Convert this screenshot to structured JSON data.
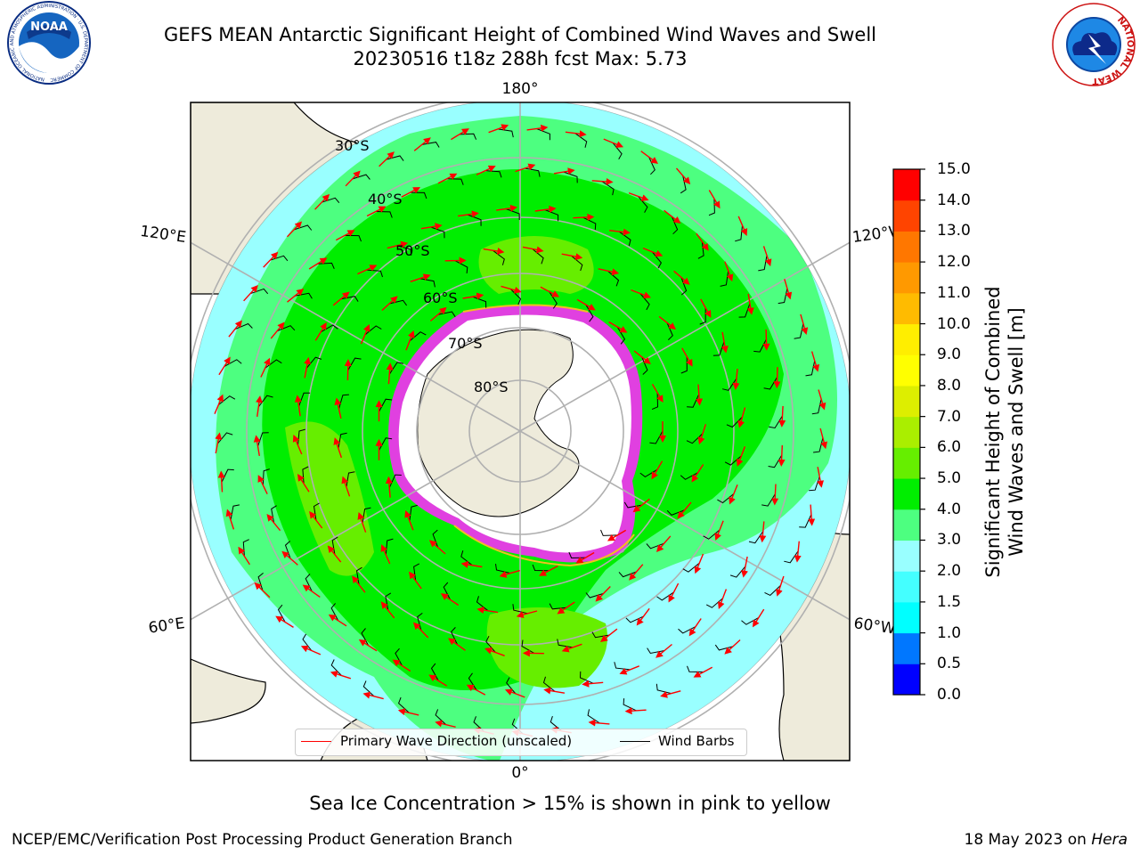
{
  "header": {
    "title_line1": "GEFS MEAN Antarctic Significant Height of Combined Wind Waves and Swell",
    "title_line2": "20230516 t18z 288h fcst   Max: 5.73"
  },
  "logos": {
    "left": {
      "name": "NOAA",
      "text": "NOAA",
      "ring_text": "NATIONAL OCEANIC AND ATMOSPHERIC ADMINISTRATION · U.S. DEPARTMENT OF COMMERCE"
    },
    "right": {
      "name": "National Weather Service",
      "ring_text": "NATIONAL WEATHER SERVICE"
    }
  },
  "map": {
    "projection": "south-polar-stereographic",
    "longitude_labels": {
      "top": "180°",
      "bottom": "0°",
      "upper_left": "120°E",
      "upper_right": "120°W",
      "lower_left": "60°E",
      "lower_right": "60°W"
    },
    "latitude_labels": [
      "30°S",
      "40°S",
      "50°S",
      "60°S",
      "70°S",
      "80°S"
    ],
    "colors": {
      "land": "#eeebdb",
      "ice_land": "#ffffff",
      "sea_ice": "#e040e0",
      "sea_ice_edge": "#f0c020",
      "grid": "#b0b0b0",
      "wave_arrow": "#ff0000",
      "wind_barb": "#000000"
    }
  },
  "colorbar": {
    "label": "Significant Height of Combined\nWind Waves and Swell [m]",
    "ticks": [
      "15.0",
      "14.0",
      "13.0",
      "12.0",
      "11.0",
      "10.0",
      "9.0",
      "8.0",
      "7.0",
      "6.0",
      "5.0",
      "4.0",
      "3.0",
      "2.0",
      "1.5",
      "1.0",
      "0.5",
      "0.0"
    ],
    "bins": [
      {
        "from": 0.0,
        "to": 0.5,
        "color": "#0000ff"
      },
      {
        "from": 0.5,
        "to": 1.0,
        "color": "#0077ff"
      },
      {
        "from": 1.0,
        "to": 1.5,
        "color": "#00ffff"
      },
      {
        "from": 1.5,
        "to": 2.0,
        "color": "#44ffff"
      },
      {
        "from": 2.0,
        "to": 3.0,
        "color": "#99ffff"
      },
      {
        "from": 3.0,
        "to": 4.0,
        "color": "#4dff80"
      },
      {
        "from": 4.0,
        "to": 5.0,
        "color": "#00ee00"
      },
      {
        "from": 5.0,
        "to": 6.0,
        "color": "#66ee00"
      },
      {
        "from": 6.0,
        "to": 7.0,
        "color": "#aaee00"
      },
      {
        "from": 7.0,
        "to": 8.0,
        "color": "#ddee00"
      },
      {
        "from": 8.0,
        "to": 9.0,
        "color": "#ffff00"
      },
      {
        "from": 9.0,
        "to": 10.0,
        "color": "#ffee00"
      },
      {
        "from": 10.0,
        "to": 11.0,
        "color": "#ffbb00"
      },
      {
        "from": 11.0,
        "to": 12.0,
        "color": "#ff9900"
      },
      {
        "from": 12.0,
        "to": 13.0,
        "color": "#ff7700"
      },
      {
        "from": 13.0,
        "to": 14.0,
        "color": "#ff4400"
      },
      {
        "from": 14.0,
        "to": 15.0,
        "color": "#ff0000"
      }
    ]
  },
  "legend": {
    "wave_label": "Primary Wave Direction (unscaled)",
    "barb_label": "Wind Barbs",
    "wave_color": "#ff0000",
    "barb_color": "#000000"
  },
  "notes": {
    "sea_ice": "Sea Ice Concentration > 15% is shown in pink to yellow"
  },
  "footer": {
    "left": "NCEP/EMC/Verification Post Processing Product Generation Branch",
    "right_prefix": "18 May 2023 on ",
    "right_host": "Hera"
  }
}
